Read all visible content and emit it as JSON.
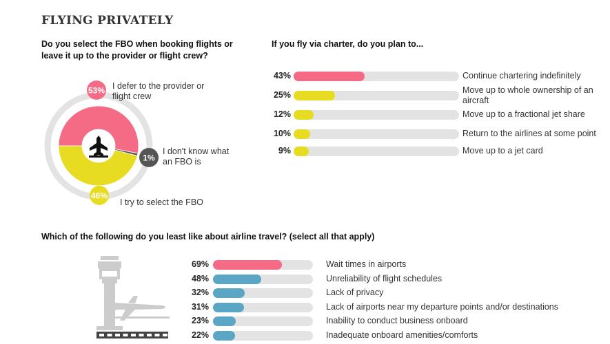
{
  "title": "FLYING PRIVATELY",
  "colors": {
    "pink": "#f56b86",
    "yellow": "#e8dc22",
    "blue": "#5ba6c4",
    "dark": "#555555",
    "track": "#e3e3e3",
    "icon": "#cccccc"
  },
  "chart_data": [
    {
      "type": "pie",
      "title": "Do you select the FBO when booking flights or leave it up to the provider or flight crew?",
      "slices": [
        {
          "value": 53,
          "value_label": "53%",
          "label": "I defer to the provider or flight crew",
          "color": "#f56b86"
        },
        {
          "value": 1,
          "value_label": "1%",
          "label": "I don't know what an FBO is",
          "color": "#555555"
        },
        {
          "value": 46,
          "value_label": "46%",
          "label": "I try to select the FBO",
          "color": "#e8dc22"
        }
      ],
      "center_icon": "airplane-icon"
    },
    {
      "type": "bar",
      "orientation": "horizontal",
      "title": "If you fly via charter, do you plan to...",
      "categories": [
        "Continue chartering indefinitely",
        "Move up to whole ownership of an aircraft",
        "Move up to a fractional jet share",
        "Return to the airlines at some point",
        "Move up to a jet card"
      ],
      "values": [
        43,
        25,
        12,
        10,
        9
      ],
      "value_labels": [
        "43%",
        "25%",
        "12%",
        "10%",
        "9%"
      ],
      "colors": [
        "#f56b86",
        "#e8dc22",
        "#e8dc22",
        "#e8dc22",
        "#e8dc22"
      ],
      "xlim": [
        0,
        100
      ]
    },
    {
      "type": "bar",
      "orientation": "horizontal",
      "title": "Which of the following do you least like about airline travel? (select all that apply)",
      "categories": [
        "Wait times in airports",
        "Unreliability of flight schedules",
        "Lack of privacy",
        "Lack of airports near my departure points and/or destinations",
        "Inability to conduct business onboard",
        "Inadequate onboard amenities/comforts"
      ],
      "values": [
        69,
        48,
        32,
        31,
        23,
        22
      ],
      "value_labels": [
        "69%",
        "48%",
        "32%",
        "31%",
        "23%",
        "22%"
      ],
      "colors": [
        "#f56b86",
        "#5ba6c4",
        "#5ba6c4",
        "#5ba6c4",
        "#5ba6c4",
        "#5ba6c4"
      ],
      "xlim": [
        0,
        100
      ],
      "decor_icon": "airport-tower-icon"
    }
  ]
}
